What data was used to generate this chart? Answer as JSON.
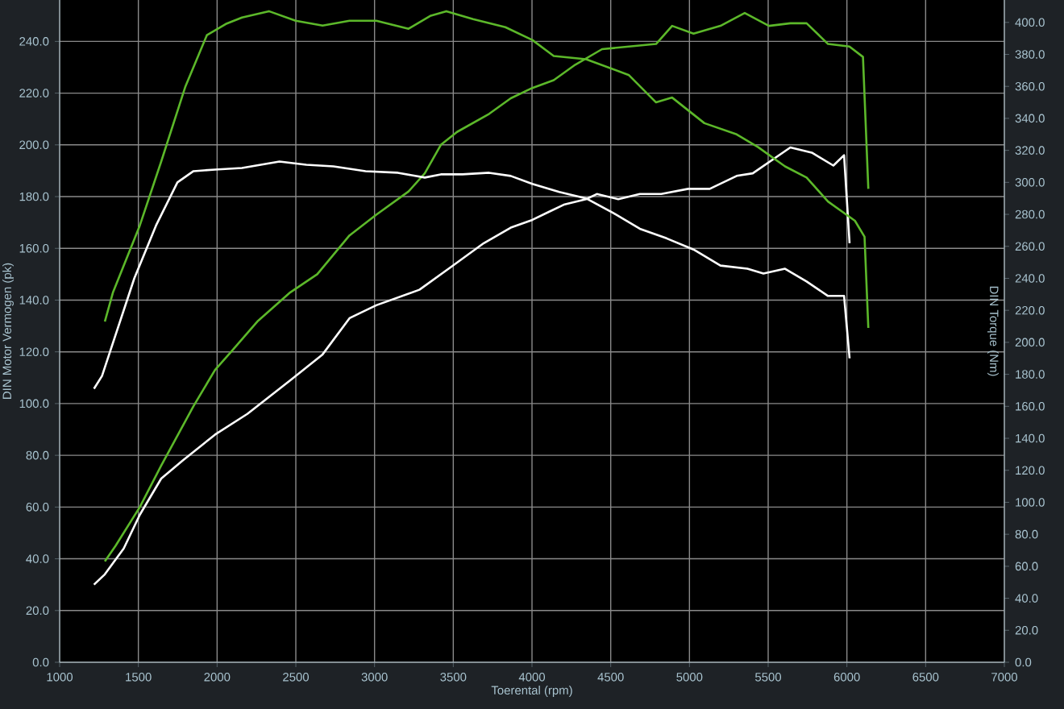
{
  "chart_data": {
    "type": "line",
    "xlabel": "Toerental (rpm)",
    "ylabel": "DIN Motor Vermogen (pk)",
    "y2label": "DIN Torque (Nm)",
    "xlim": [
      1000,
      7000
    ],
    "xticks": [
      1000,
      1500,
      2000,
      2500,
      3000,
      3500,
      4000,
      4500,
      5000,
      5500,
      6000,
      6500,
      7000
    ],
    "ylim": [
      0,
      256
    ],
    "yticks": [
      {
        "value": 0,
        "label": "0.0"
      },
      {
        "value": 20,
        "label": "20.0"
      },
      {
        "value": 40,
        "label": "40.0"
      },
      {
        "value": 60,
        "label": "60.0"
      },
      {
        "value": 80,
        "label": "80.0"
      },
      {
        "value": 100,
        "label": "100.0"
      },
      {
        "value": 120,
        "label": "120.0"
      },
      {
        "value": 140,
        "label": "140.0"
      },
      {
        "value": 160,
        "label": "160.0"
      },
      {
        "value": 180,
        "label": "180.0"
      },
      {
        "value": 200,
        "label": "200.0"
      },
      {
        "value": 220,
        "label": "220.0"
      },
      {
        "value": 240,
        "label": "240.0"
      }
    ],
    "y2lim": [
      0,
      414
    ],
    "y2ticks": [
      {
        "value": 0,
        "label": "0.0"
      },
      {
        "value": 20,
        "label": "20.0"
      },
      {
        "value": 40,
        "label": "40.0"
      },
      {
        "value": 60,
        "label": "60.0"
      },
      {
        "value": 80,
        "label": "80.0"
      },
      {
        "value": 100,
        "label": "100.0"
      },
      {
        "value": 120,
        "label": "120.0"
      },
      {
        "value": 140,
        "label": "140.0"
      },
      {
        "value": 160,
        "label": "160.0"
      },
      {
        "value": 180,
        "label": "180.0"
      },
      {
        "value": 200,
        "label": "200.0"
      },
      {
        "value": 220,
        "label": "220.0"
      },
      {
        "value": 240,
        "label": "240.0"
      },
      {
        "value": 260,
        "label": "260.0"
      },
      {
        "value": 280,
        "label": "280.0"
      },
      {
        "value": 300,
        "label": "300.0"
      },
      {
        "value": 320,
        "label": "320.0"
      },
      {
        "value": 340,
        "label": "340.0"
      },
      {
        "value": 360,
        "label": "360.0"
      },
      {
        "value": 380,
        "label": "380.0"
      },
      {
        "value": 400,
        "label": "400.0"
      }
    ],
    "grid": true,
    "series": [
      {
        "color": "#5cb82a",
        "x": [
          1287,
          1355,
          1509,
          1645,
          1850,
          1987,
          2089,
          2260,
          2465,
          2636,
          2841,
          3011,
          3216,
          3319,
          3421,
          3524,
          3728,
          3865,
          4002,
          4138,
          4275,
          4445,
          4616,
          4788,
          4890,
          5026,
          5197,
          5351,
          5505,
          5641,
          5744,
          5880,
          6016,
          6102,
          6136
        ],
        "values": [
          39,
          45,
          60,
          76,
          99,
          113,
          120,
          132,
          143,
          150,
          165,
          173,
          182,
          189,
          200,
          205,
          212,
          218,
          222,
          225,
          231,
          237,
          238,
          239,
          246,
          243,
          246,
          251,
          246,
          247,
          247,
          239,
          238,
          234,
          183
        ]
      },
      {
        "color": "#ffffff",
        "x": [
          1218,
          1287,
          1407,
          1509,
          1645,
          1782,
          1987,
          2192,
          2465,
          2670,
          2841,
          3011,
          3285,
          3490,
          3694,
          3865,
          4002,
          4104,
          4207,
          4343,
          4412,
          4548,
          4685,
          4821,
          4992,
          5129,
          5300,
          5402,
          5641,
          5777,
          5914,
          5982,
          6017
        ],
        "values": [
          30,
          34,
          44,
          57,
          71,
          78,
          88,
          96,
          109,
          119,
          133,
          138,
          144,
          153,
          162,
          168,
          171,
          174,
          177,
          179,
          181,
          179,
          181,
          181,
          183,
          183,
          188,
          189,
          199,
          197,
          192,
          196,
          162
        ]
      },
      {
        "color": "#5cb82a",
        "axis": "y2",
        "x": [
          1287,
          1338,
          1509,
          1645,
          1799,
          1935,
          2055,
          2158,
          2329,
          2499,
          2670,
          2841,
          3011,
          3216,
          3353,
          3456,
          3626,
          3831,
          4002,
          4138,
          4343,
          4616,
          4788,
          4890,
          5095,
          5300,
          5436,
          5607,
          5744,
          5880,
          6051,
          6112,
          6136
        ],
        "values": [
          213,
          231,
          273,
          313,
          360,
          392,
          399,
          403,
          407,
          401,
          398,
          401,
          401,
          396,
          404,
          407,
          402,
          397,
          389,
          379,
          377,
          367,
          350,
          353,
          337,
          330,
          322,
          310,
          303,
          288,
          276,
          266,
          209
        ]
      },
      {
        "color": "#ffffff",
        "axis": "y2",
        "x": [
          1218,
          1269,
          1474,
          1612,
          1748,
          1850,
          1987,
          2158,
          2396,
          2567,
          2739,
          2943,
          3148,
          3319,
          3421,
          3558,
          3728,
          3865,
          4002,
          4173,
          4343,
          4514,
          4685,
          4855,
          5026,
          5197,
          5368,
          5470,
          5607,
          5744,
          5880,
          5982,
          6017
        ],
        "values": [
          171,
          179,
          240,
          273,
          300,
          307,
          308,
          309,
          313,
          311,
          310,
          307,
          306,
          303,
          305,
          305,
          306,
          304,
          299,
          294,
          290,
          281,
          271,
          265,
          258,
          248,
          246,
          243,
          246,
          238,
          229,
          229,
          190
        ]
      }
    ]
  }
}
